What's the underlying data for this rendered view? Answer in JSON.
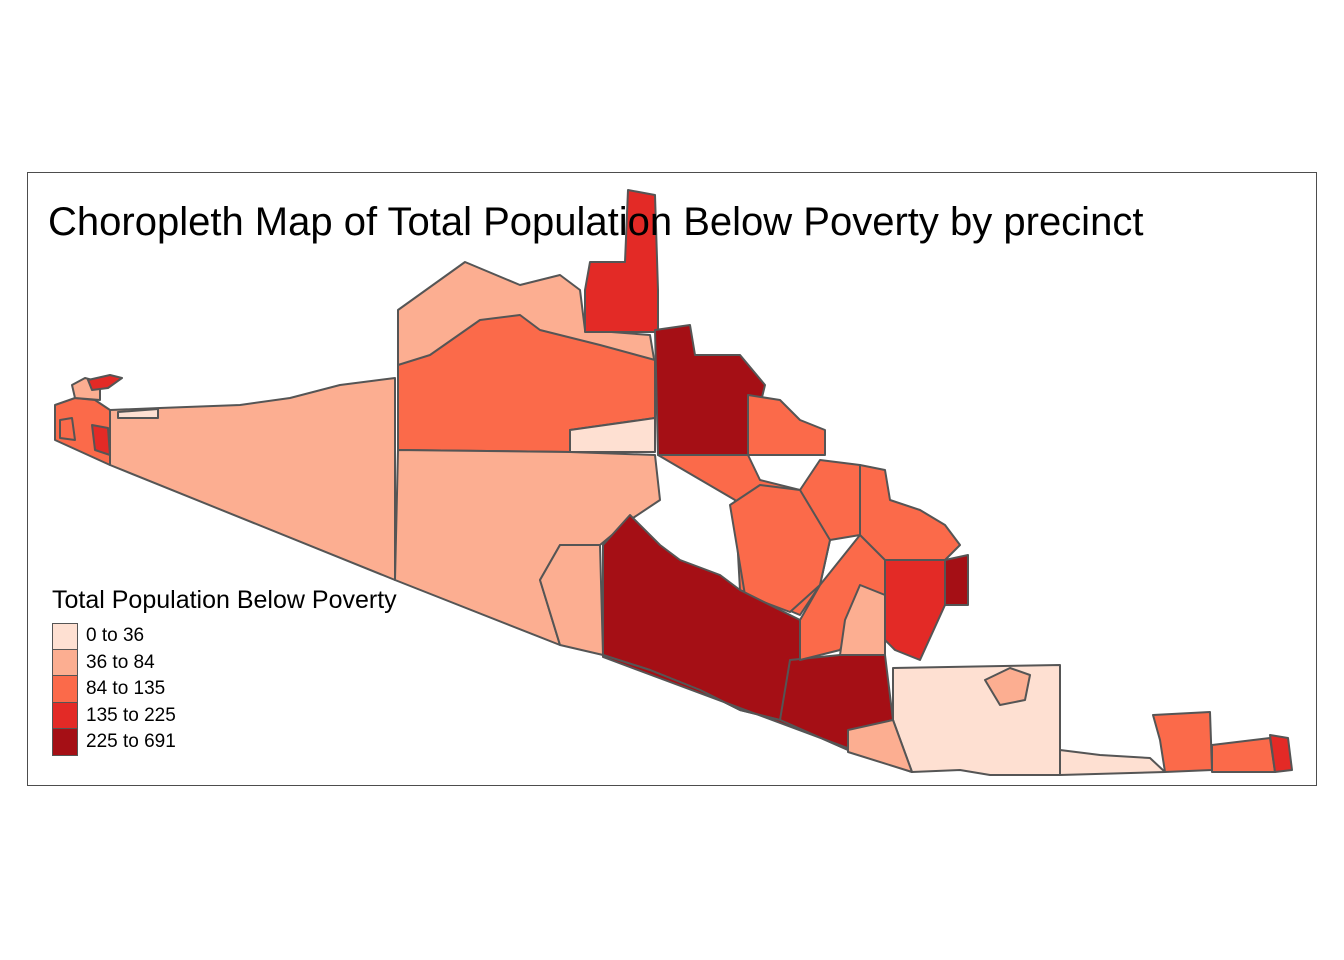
{
  "title": "Choropleth Map of Total Population Below Poverty by precinct",
  "legend": {
    "title": "Total Population Below Poverty",
    "classes": [
      {
        "label": "0 to 36",
        "color": "#fee0d2"
      },
      {
        "label": "36 to 84",
        "color": "#fcae91"
      },
      {
        "label": "84 to 135",
        "color": "#fb6a4a"
      },
      {
        "label": "135 to 225",
        "color": "#e32a26"
      },
      {
        "label": "225 to 691",
        "color": "#a50f15"
      }
    ]
  },
  "colors": {
    "border": "#555555",
    "frame": "#4d4d4d",
    "background": "#ffffff"
  }
}
